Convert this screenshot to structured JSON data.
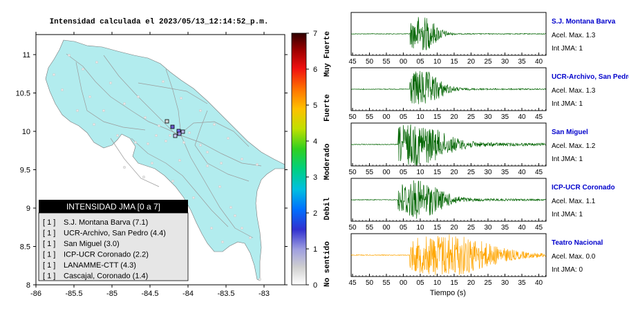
{
  "map": {
    "title": "Intensidad calculada el 2023/05/13_12:14:52_p.m.",
    "x_ticks": [
      "-86",
      "-85.5",
      "-85",
      "-84.5",
      "-84",
      "-83.5",
      "-83"
    ],
    "y_ticks": [
      "11",
      "10.5",
      "10",
      "9.5",
      "9",
      "8.5",
      "8"
    ],
    "land_color": "#b2ecee",
    "legend": {
      "title": "INTENSIDAD JMA [0 a 7]",
      "items": [
        {
          "bracket": "[ 1 ]",
          "label": "S.J. Montana Barva (7.1)"
        },
        {
          "bracket": "[ 1 ]",
          "label": "UCR-Archivo, San Pedro (4.4)"
        },
        {
          "bracket": "[ 1 ]",
          "label": "San Miguel (3.0)"
        },
        {
          "bracket": "[ 1 ]",
          "label": "ICP-UCR Coronado (2.2)"
        },
        {
          "bracket": "[ 1 ]",
          "label": "LANAMME-CTT (4.3)"
        },
        {
          "bracket": "[ 1 ]",
          "label": "Cascajal, Coronado (1.4)"
        }
      ]
    }
  },
  "colorbar": {
    "ticks": [
      "0",
      "1",
      "2",
      "3",
      "4",
      "5",
      "6",
      "7"
    ],
    "side_labels": [
      "No sentido",
      "Debil",
      "Moderado",
      "Fuerte",
      "Muy Fuerte"
    ]
  },
  "chart_data": [
    {
      "type": "line",
      "station": "S.J. Montana Barva",
      "accel_label": "Acel. Max. 1.3",
      "jma_label": "Int JMA: 1",
      "x_ticks": [
        "45",
        "50",
        "55",
        "00",
        "05",
        "10",
        "15",
        "20",
        "25",
        "30",
        "35",
        "40"
      ],
      "color": "#006400"
    },
    {
      "type": "line",
      "station": "UCR-Archivo, San Pedro",
      "accel_label": "Acel. Max. 1.3",
      "jma_label": "Int JMA: 1",
      "x_ticks": [
        "50",
        "55",
        "00",
        "05",
        "10",
        "15",
        "20",
        "25",
        "30",
        "35",
        "40",
        "45"
      ],
      "color": "#006400"
    },
    {
      "type": "line",
      "station": "San Miguel",
      "accel_label": "Acel. Max. 1.2",
      "jma_label": "Int JMA: 1",
      "x_ticks": [
        "50",
        "55",
        "00",
        "05",
        "10",
        "15",
        "20",
        "25",
        "30",
        "35",
        "40",
        "45"
      ],
      "color": "#006400"
    },
    {
      "type": "line",
      "station": "ICP-UCR Coronado",
      "accel_label": "Acel. Max. 1.1",
      "jma_label": "Int JMA: 1",
      "x_ticks": [
        "50",
        "55",
        "00",
        "05",
        "10",
        "15",
        "20",
        "25",
        "30",
        "35",
        "40",
        "45"
      ],
      "color": "#006400"
    },
    {
      "type": "line",
      "station": "Teatro Nacional",
      "accel_label": "Acel. Max. 0.0",
      "jma_label": "Int JMA: 0",
      "x_ticks": [
        "45",
        "50",
        "55",
        "00",
        "05",
        "10",
        "15",
        "20",
        "25",
        "30",
        "35",
        "40"
      ],
      "xlabel": "Tiempo (s)",
      "color": "#ffa500"
    }
  ],
  "station_name_color": "#0000cc"
}
